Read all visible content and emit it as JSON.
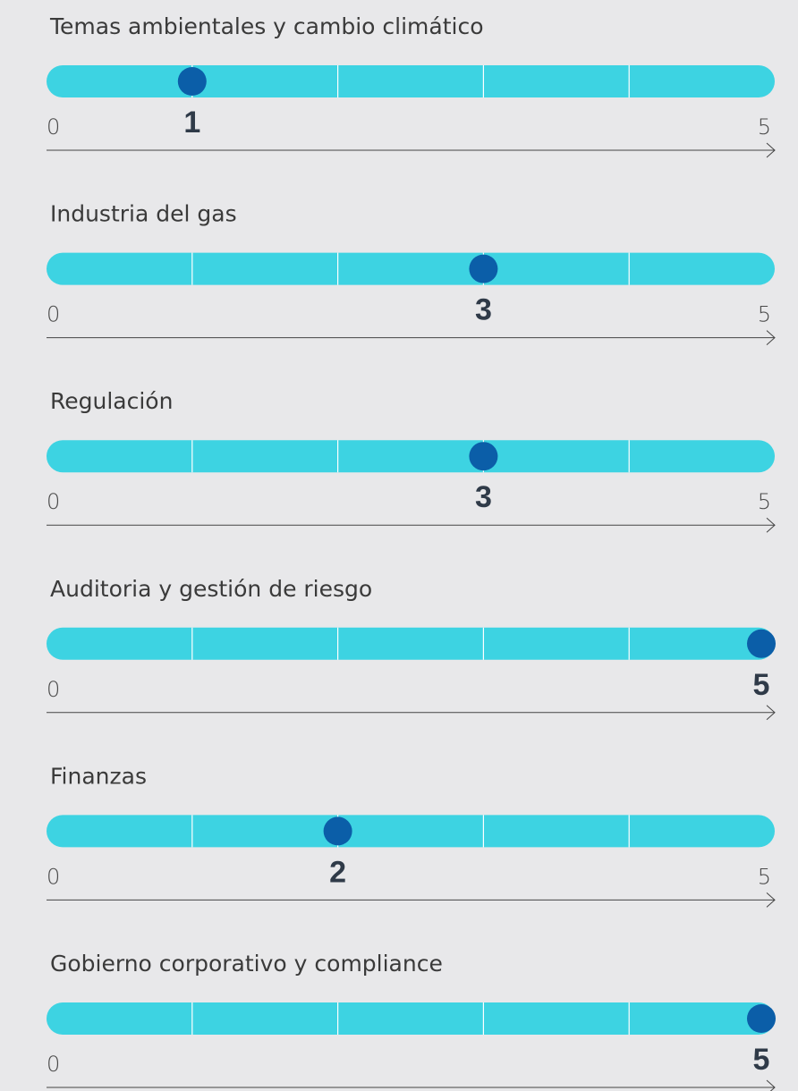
{
  "chart_data": [
    {
      "type": "dot",
      "title": "Temas ambientales y cambio climático",
      "values": [
        1
      ],
      "xlim": [
        0,
        5
      ],
      "xticks": [
        0,
        1,
        2,
        3,
        4,
        5
      ],
      "color": "#0b5ea8",
      "bar_color": "#3dd3e2"
    },
    {
      "type": "dot",
      "title": "Industria del gas",
      "values": [
        3
      ],
      "xlim": [
        0,
        5
      ],
      "xticks": [
        0,
        1,
        2,
        3,
        4,
        5
      ],
      "color": "#0b5ea8",
      "bar_color": "#3dd3e2"
    },
    {
      "type": "dot",
      "title": "Regulación",
      "values": [
        3
      ],
      "xlim": [
        0,
        5
      ],
      "xticks": [
        0,
        1,
        2,
        3,
        4,
        5
      ],
      "color": "#0b5ea8",
      "bar_color": "#3dd3e2"
    },
    {
      "type": "dot",
      "title": "Auditoria y gestión de riesgo",
      "values": [
        5
      ],
      "xlim": [
        0,
        5
      ],
      "xticks": [
        0,
        1,
        2,
        3,
        4,
        5
      ],
      "color": "#0b5ea8",
      "bar_color": "#3dd3e2"
    },
    {
      "type": "dot",
      "title": "Finanzas",
      "values": [
        2
      ],
      "xlim": [
        0,
        5
      ],
      "xticks": [
        0,
        1,
        2,
        3,
        4,
        5
      ],
      "color": "#0b5ea8",
      "bar_color": "#3dd3e2"
    },
    {
      "type": "dot",
      "title": "Gobierno corporativo y compliance",
      "values": [
        5
      ],
      "xlim": [
        0,
        5
      ],
      "xticks": [
        0,
        1,
        2,
        3,
        4,
        5
      ],
      "color": "#0b5ea8",
      "bar_color": "#3dd3e2"
    }
  ]
}
